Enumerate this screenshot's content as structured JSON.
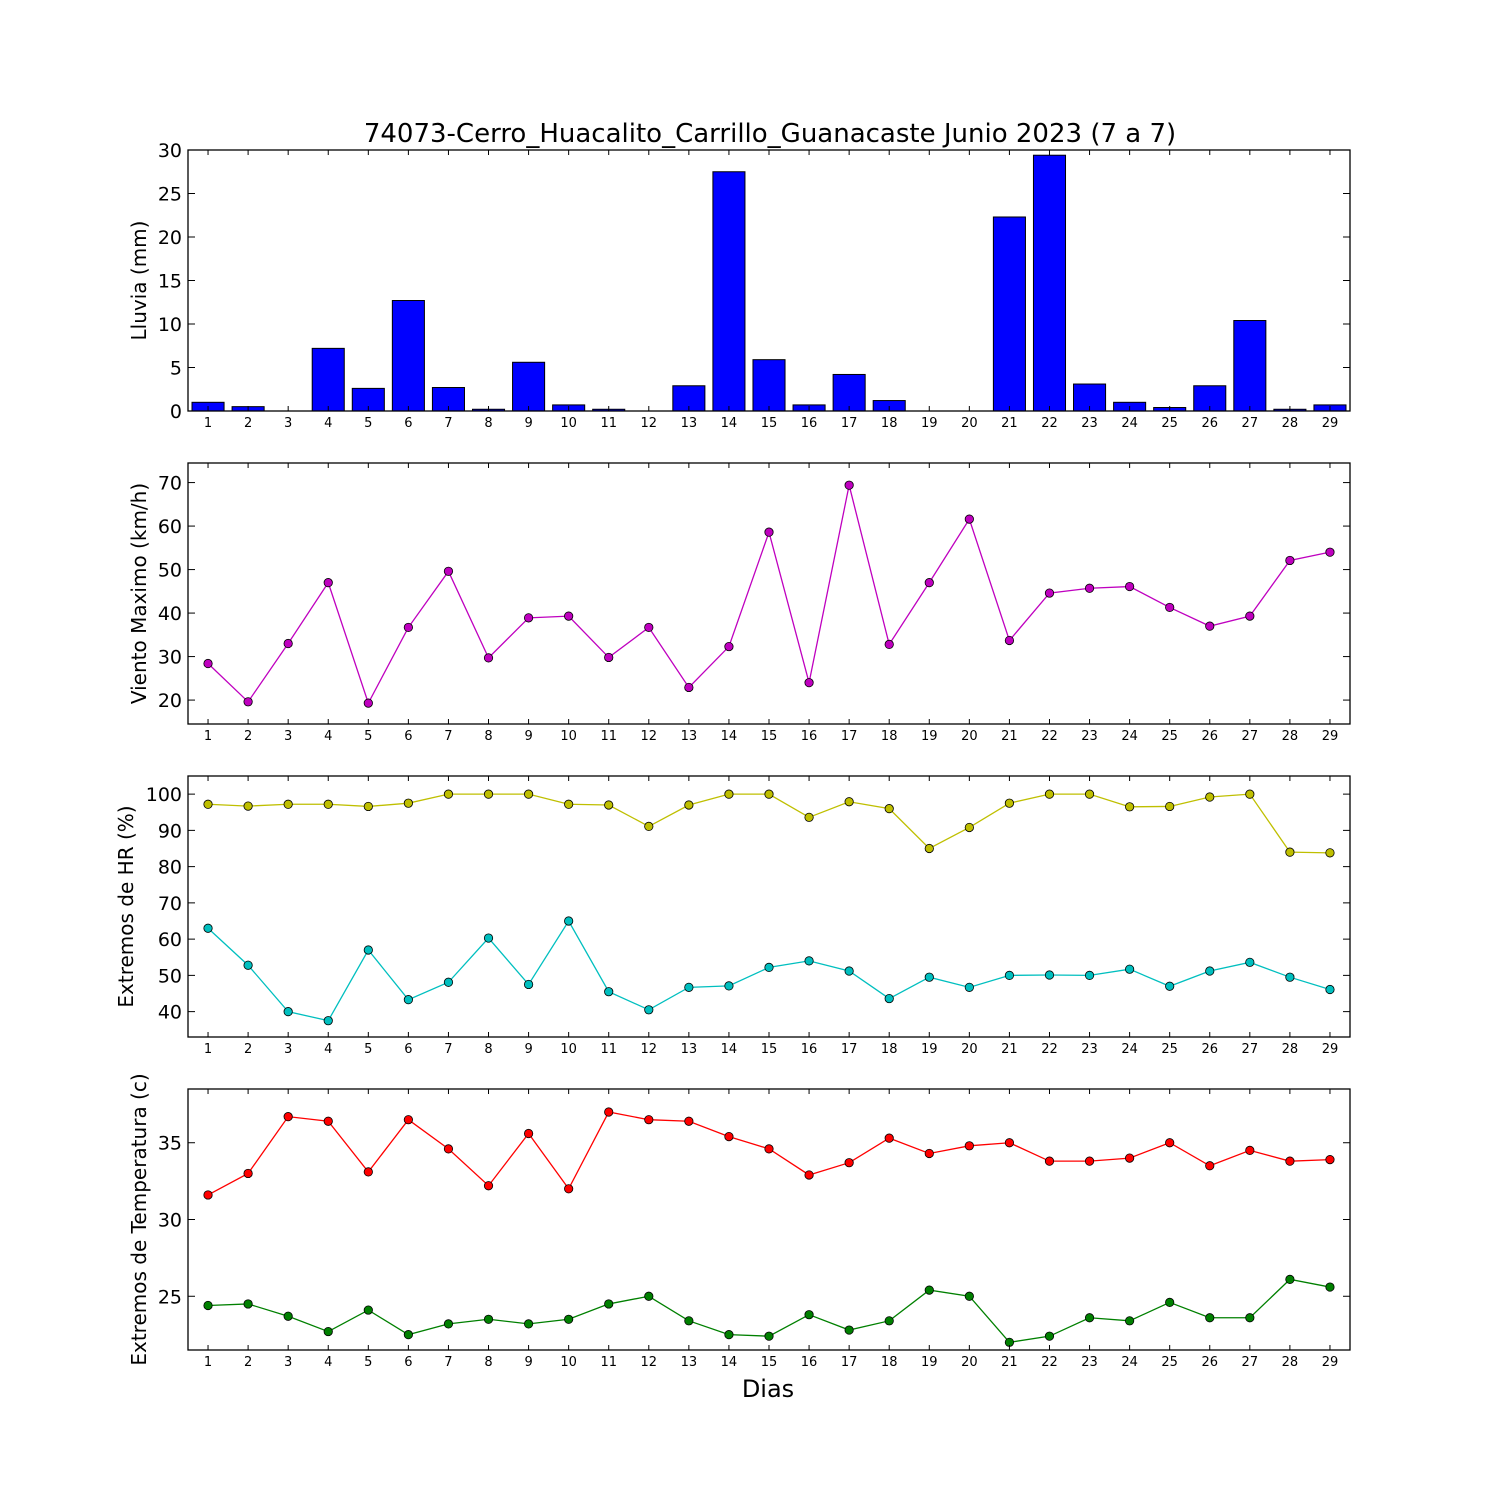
{
  "chart_data": {
    "title": "74073-Cerro_Huacalito_Carrillo_Guanacaste Junio 2023  (7 a 7)",
    "xlabel": "Dias",
    "days": [
      1,
      2,
      3,
      4,
      5,
      6,
      7,
      8,
      9,
      10,
      11,
      12,
      13,
      14,
      15,
      16,
      17,
      18,
      19,
      20,
      21,
      22,
      23,
      24,
      25,
      26,
      27,
      28,
      29
    ],
    "panels": [
      {
        "type": "bar",
        "ylabel": "Lluvia (mm)",
        "ylim": [
          0,
          30
        ],
        "yticks": [
          0,
          5,
          10,
          15,
          20,
          25,
          30
        ],
        "series": [
          {
            "color": "#0000ff",
            "values": [
              1.0,
              0.5,
              0.0,
              7.2,
              2.6,
              12.7,
              2.7,
              0.2,
              5.6,
              0.7,
              0.2,
              0.0,
              2.9,
              27.5,
              5.9,
              0.7,
              4.2,
              1.2,
              0.0,
              0.0,
              22.3,
              29.4,
              3.1,
              1.0,
              0.4,
              2.9,
              10.4,
              0.2,
              0.7
            ]
          }
        ]
      },
      {
        "type": "line",
        "ylabel": "Viento Maximo (km/h)",
        "ylim": [
          14.5,
          74.5
        ],
        "yticks": [
          20,
          30,
          40,
          50,
          60,
          70
        ],
        "series": [
          {
            "color": "#bf00bf",
            "values": [
              28.4,
              19.6,
              33.0,
              47.0,
              19.3,
              36.7,
              49.6,
              29.7,
              38.9,
              39.3,
              29.8,
              36.7,
              22.9,
              32.3,
              58.6,
              24.0,
              69.4,
              32.8,
              47.0,
              61.6,
              33.7,
              44.6,
              45.7,
              46.1,
              41.3,
              37.0,
              39.3,
              52.1,
              54.0
            ]
          }
        ]
      },
      {
        "type": "line",
        "ylabel": "Extremos de HR (%)",
        "ylim": [
          33,
          105
        ],
        "yticks": [
          40,
          50,
          60,
          70,
          80,
          90,
          100
        ],
        "series": [
          {
            "color": "#bfbf00",
            "values": [
              97.2,
              96.7,
              97.2,
              97.2,
              96.6,
              97.5,
              100.0,
              100.0,
              100.0,
              97.2,
              97.0,
              91.1,
              97.0,
              100.0,
              100.0,
              93.6,
              97.9,
              96.0,
              85.0,
              90.8,
              97.5,
              100.0,
              100.0,
              96.5,
              96.6,
              99.2,
              100.0,
              84.0,
              83.8
            ]
          },
          {
            "color": "#00bfbf",
            "values": [
              63.0,
              52.8,
              40.0,
              37.5,
              57.0,
              43.3,
              48.1,
              60.3,
              47.5,
              65.0,
              45.5,
              40.5,
              46.7,
              47.1,
              52.2,
              54.0,
              51.2,
              43.6,
              49.5,
              46.7,
              50.0,
              50.1,
              50.0,
              51.7,
              47.0,
              51.2,
              53.6,
              49.5,
              46.1
            ]
          }
        ]
      },
      {
        "type": "line",
        "ylabel": "Extremos de Temperatura (c)",
        "ylim": [
          21.5,
          38.5
        ],
        "yticks": [
          25,
          30,
          35
        ],
        "series": [
          {
            "color": "#ff0000",
            "values": [
              31.6,
              33.0,
              36.7,
              36.4,
              33.1,
              36.5,
              34.6,
              32.2,
              35.6,
              32.0,
              37.0,
              36.5,
              36.4,
              35.4,
              34.6,
              32.9,
              33.7,
              35.3,
              34.3,
              34.8,
              35.0,
              33.8,
              33.8,
              34.0,
              35.0,
              33.5,
              34.5,
              33.8,
              33.9
            ]
          },
          {
            "color": "#008000",
            "values": [
              24.4,
              24.5,
              23.7,
              22.7,
              24.1,
              22.5,
              23.2,
              23.5,
              23.2,
              23.5,
              24.5,
              25.0,
              23.4,
              22.5,
              22.4,
              23.8,
              22.8,
              23.4,
              25.4,
              25.0,
              22.0,
              22.4,
              23.6,
              23.4,
              24.6,
              23.6,
              23.6,
              26.1,
              25.6
            ]
          }
        ]
      }
    ]
  }
}
